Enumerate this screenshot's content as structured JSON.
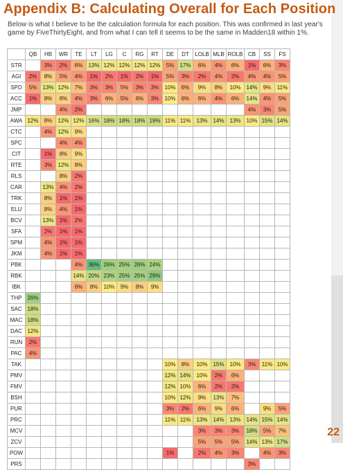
{
  "page": {
    "title": "Appendix B:  Calculating Overall for Each Position",
    "subtitle": "Below is what I believe to be the calculation formula for each position. This was confirmed in last year's game by FiveThirtyEight, and from what I can tell it seems to be the same in Madden18 within 1%.",
    "page_number": "22"
  },
  "table": {
    "columns": [
      "",
      "QB",
      "HB",
      "WR",
      "TE",
      "LT",
      "LG",
      "C",
      "RG",
      "RT",
      "DE",
      "DT",
      "LOLB",
      "MLB",
      "ROLB",
      "CB",
      "SS",
      "FS"
    ],
    "rows": [
      {
        "label": "STR",
        "cells": [
          "",
          "3%",
          "2%",
          "6%",
          "13%",
          "12%",
          "12%",
          "12%",
          "12%",
          "5%",
          "17%",
          "6%",
          "4%",
          "6%",
          "1%",
          "6%",
          "3%"
        ]
      },
      {
        "label": "AGI",
        "cells": [
          "2%",
          "8%",
          "5%",
          "4%",
          "1%",
          "2%",
          "1%",
          "2%",
          "1%",
          "5%",
          "3%",
          "2%",
          "4%",
          "2%",
          "4%",
          "4%",
          "5%"
        ]
      },
      {
        "label": "SPD",
        "cells": [
          "5%",
          "13%",
          "12%",
          "7%",
          "3%",
          "3%",
          "5%",
          "3%",
          "3%",
          "10%",
          "6%",
          "9%",
          "8%",
          "10%",
          "14%",
          "9%",
          "11%"
        ]
      },
      {
        "label": "ACC",
        "cells": [
          "1%",
          "8%",
          "8%",
          "4%",
          "3%",
          "6%",
          "5%",
          "6%",
          "3%",
          "10%",
          "6%",
          "6%",
          "4%",
          "6%",
          "14%",
          "4%",
          "5%"
        ]
      },
      {
        "label": "JMP",
        "cells": [
          "",
          "",
          "4%",
          "2%",
          "",
          "",
          "",
          "",
          "",
          "",
          "",
          "",
          "",
          "",
          "4%",
          "3%",
          "5%"
        ]
      },
      {
        "label": "AWA",
        "cells": [
          "12%",
          "8%",
          "12%",
          "12%",
          "16%",
          "18%",
          "18%",
          "18%",
          "19%",
          "11%",
          "11%",
          "13%",
          "14%",
          "13%",
          "10%",
          "15%",
          "14%"
        ]
      },
      {
        "label": "CTC",
        "cells": [
          "",
          "4%",
          "12%",
          "9%",
          "",
          "",
          "",
          "",
          "",
          "",
          "",
          "",
          "",
          "",
          "",
          "",
          ""
        ]
      },
      {
        "label": "SPC",
        "cells": [
          "",
          "",
          "4%",
          "4%",
          "",
          "",
          "",
          "",
          "",
          "",
          "",
          "",
          "",
          "",
          "",
          "",
          ""
        ]
      },
      {
        "label": "CIT",
        "cells": [
          "",
          "1%",
          "8%",
          "9%",
          "",
          "",
          "",
          "",
          "",
          "",
          "",
          "",
          "",
          "",
          "",
          "",
          ""
        ]
      },
      {
        "label": "RTE",
        "cells": [
          "",
          "3%",
          "12%",
          "8%",
          "",
          "",
          "",
          "",
          "",
          "",
          "",
          "",
          "",
          "",
          "",
          "",
          ""
        ]
      },
      {
        "label": "RLS",
        "cells": [
          "",
          "",
          "8%",
          "2%",
          "",
          "",
          "",
          "",
          "",
          "",
          "",
          "",
          "",
          "",
          "",
          "",
          ""
        ]
      },
      {
        "label": "CAR",
        "cells": [
          "",
          "13%",
          "4%",
          "2%",
          "",
          "",
          "",
          "",
          "",
          "",
          "",
          "",
          "",
          "",
          "",
          "",
          ""
        ]
      },
      {
        "label": "TRK",
        "cells": [
          "",
          "8%",
          "1%",
          "1%",
          "",
          "",
          "",
          "",
          "",
          "",
          "",
          "",
          "",
          "",
          "",
          "",
          ""
        ]
      },
      {
        "label": "ELU",
        "cells": [
          "",
          "8%",
          "4%",
          "1%",
          "",
          "",
          "",
          "",
          "",
          "",
          "",
          "",
          "",
          "",
          "",
          "",
          ""
        ]
      },
      {
        "label": "BCV",
        "cells": [
          "",
          "13%",
          "1%",
          "2%",
          "",
          "",
          "",
          "",
          "",
          "",
          "",
          "",
          "",
          "",
          "",
          "",
          ""
        ]
      },
      {
        "label": "SFA",
        "cells": [
          "",
          "2%",
          "1%",
          "1%",
          "",
          "",
          "",
          "",
          "",
          "",
          "",
          "",
          "",
          "",
          "",
          "",
          ""
        ]
      },
      {
        "label": "SPM",
        "cells": [
          "",
          "4%",
          "1%",
          "1%",
          "",
          "",
          "",
          "",
          "",
          "",
          "",
          "",
          "",
          "",
          "",
          "",
          ""
        ]
      },
      {
        "label": "JKM",
        "cells": [
          "",
          "4%",
          "1%",
          "1%",
          "",
          "",
          "",
          "",
          "",
          "",
          "",
          "",
          "",
          "",
          "",
          "",
          ""
        ]
      },
      {
        "label": "PBK",
        "cells": [
          "",
          "",
          "",
          "4%",
          "36%",
          "26%",
          "25%",
          "26%",
          "24%",
          "",
          "",
          "",
          "",
          "",
          "",
          "",
          ""
        ]
      },
      {
        "label": "RBK",
        "cells": [
          "",
          "",
          "",
          "14%",
          "20%",
          "23%",
          "25%",
          "25%",
          "29%",
          "",
          "",
          "",
          "",
          "",
          "",
          "",
          ""
        ]
      },
      {
        "label": "IBK",
        "cells": [
          "",
          "",
          "",
          "6%",
          "8%",
          "10%",
          "9%",
          "8%",
          "9%",
          "",
          "",
          "",
          "",
          "",
          "",
          "",
          ""
        ]
      },
      {
        "label": "THP",
        "cells": [
          "26%",
          "",
          "",
          "",
          "",
          "",
          "",
          "",
          "",
          "",
          "",
          "",
          "",
          "",
          "",
          "",
          ""
        ]
      },
      {
        "label": "SAC",
        "cells": [
          "18%",
          "",
          "",
          "",
          "",
          "",
          "",
          "",
          "",
          "",
          "",
          "",
          "",
          "",
          "",
          "",
          ""
        ]
      },
      {
        "label": "MAC",
        "cells": [
          "18%",
          "",
          "",
          "",
          "",
          "",
          "",
          "",
          "",
          "",
          "",
          "",
          "",
          "",
          "",
          "",
          ""
        ]
      },
      {
        "label": "DAC",
        "cells": [
          "12%",
          "",
          "",
          "",
          "",
          "",
          "",
          "",
          "",
          "",
          "",
          "",
          "",
          "",
          "",
          "",
          ""
        ]
      },
      {
        "label": "RUN",
        "cells": [
          "2%",
          "",
          "",
          "",
          "",
          "",
          "",
          "",
          "",
          "",
          "",
          "",
          "",
          "",
          "",
          "",
          ""
        ]
      },
      {
        "label": "PAC",
        "cells": [
          "4%",
          "",
          "",
          "",
          "",
          "",
          "",
          "",
          "",
          "",
          "",
          "",
          "",
          "",
          "",
          "",
          ""
        ]
      },
      {
        "label": "TAK",
        "cells": [
          "",
          "",
          "",
          "",
          "",
          "",
          "",
          "",
          "",
          "10%",
          "8%",
          "10%",
          "15%",
          "10%",
          "3%",
          "11%",
          "10%"
        ]
      },
      {
        "label": "PMV",
        "cells": [
          "",
          "",
          "",
          "",
          "",
          "",
          "",
          "",
          "",
          "12%",
          "14%",
          "10%",
          "2%",
          "6%",
          "",
          "",
          ""
        ]
      },
      {
        "label": "FMV",
        "cells": [
          "",
          "",
          "",
          "",
          "",
          "",
          "",
          "",
          "",
          "12%",
          "10%",
          "6%",
          "2%",
          "2%",
          "",
          "",
          ""
        ]
      },
      {
        "label": "BSH",
        "cells": [
          "",
          "",
          "",
          "",
          "",
          "",
          "",
          "",
          "",
          "10%",
          "12%",
          "9%",
          "13%",
          "7%",
          "",
          "",
          ""
        ]
      },
      {
        "label": "PUR",
        "cells": [
          "",
          "",
          "",
          "",
          "",
          "",
          "",
          "",
          "",
          "3%",
          "2%",
          "6%",
          "9%",
          "6%",
          "",
          "9%",
          "5%"
        ]
      },
      {
        "label": "PRC",
        "cells": [
          "",
          "",
          "",
          "",
          "",
          "",
          "",
          "",
          "",
          "11%",
          "11%",
          "13%",
          "14%",
          "13%",
          "14%",
          "15%",
          "14%"
        ]
      },
      {
        "label": "MCV",
        "cells": [
          "",
          "",
          "",
          "",
          "",
          "",
          "",
          "",
          "",
          "",
          "",
          "3%",
          "3%",
          "3%",
          "18%",
          "5%",
          "7%"
        ]
      },
      {
        "label": "ZCV",
        "cells": [
          "",
          "",
          "",
          "",
          "",
          "",
          "",
          "",
          "",
          "",
          "",
          "5%",
          "5%",
          "5%",
          "14%",
          "13%",
          "17%"
        ]
      },
      {
        "label": "POW",
        "cells": [
          "",
          "",
          "",
          "",
          "",
          "",
          "",
          "",
          "",
          "1%",
          "",
          "2%",
          "4%",
          "3%",
          "",
          "4%",
          "3%"
        ]
      },
      {
        "label": "PRS",
        "cells": [
          "",
          "",
          "",
          "",
          "",
          "",
          "",
          "",
          "",
          "",
          "",
          "",
          "",
          "",
          "3%",
          "",
          ""
        ]
      }
    ]
  },
  "colors": {
    "title": "#c55a11",
    "scale_low": "#f8696b",
    "scale_mid": "#ffeb84",
    "scale_high": "#63be7b",
    "grid": "#b7b7b7"
  }
}
